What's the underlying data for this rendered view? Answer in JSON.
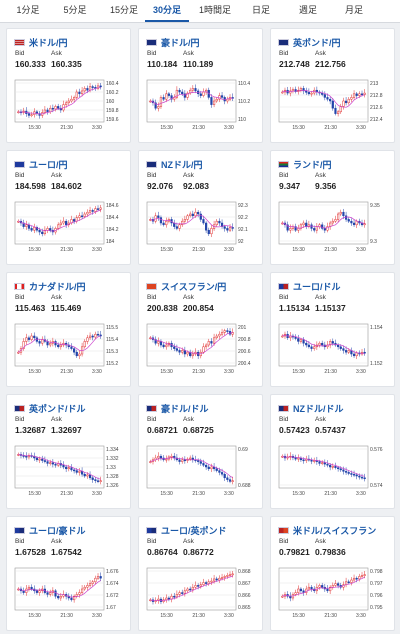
{
  "tabs": [
    {
      "label": "1分足",
      "active": false
    },
    {
      "label": "5分足",
      "active": false
    },
    {
      "label": "15分足",
      "active": false
    },
    {
      "label": "30分足",
      "active": true
    },
    {
      "label": "1時間足",
      "active": false
    },
    {
      "label": "日足",
      "active": false
    },
    {
      "label": "週足",
      "active": false
    },
    {
      "label": "月足",
      "active": false
    }
  ],
  "bid_label": "Bid",
  "ask_label": "Ask",
  "x_ticks": [
    "15:30",
    "21:30",
    "3:30"
  ],
  "colors": {
    "up": "#e03030",
    "down": "#2244aa",
    "ma": "#cc44cc",
    "accent": "#1a58a7"
  },
  "cards": [
    {
      "title": "米ドル/円",
      "flag": "flag-us-icon",
      "bid": "160.333",
      "ask": "160.335",
      "y_ticks": [
        "160.4",
        "160.2",
        "160",
        "159.8",
        "159.6"
      ],
      "series": [
        0.2,
        0.18,
        0.22,
        0.15,
        0.1,
        0.12,
        0.2,
        0.15,
        0.1,
        0.18,
        0.25,
        0.2,
        0.3,
        0.28,
        0.35,
        0.3,
        0.25,
        0.4,
        0.45,
        0.5,
        0.55,
        0.6,
        0.75,
        0.7,
        0.78,
        0.85,
        0.8,
        0.9,
        0.88,
        0.85,
        0.92,
        0.9
      ]
    },
    {
      "title": "豪ドル/円",
      "flag": "flag-au-icon",
      "bid": "110.184",
      "ask": "110.189",
      "y_ticks": [
        "110.4",
        "110.2",
        "110"
      ],
      "series": [
        0.5,
        0.45,
        0.3,
        0.35,
        0.6,
        0.55,
        0.7,
        0.65,
        0.55,
        0.6,
        0.8,
        0.75,
        0.7,
        0.6,
        0.72,
        0.8,
        0.85,
        0.78,
        0.7,
        0.65,
        0.75,
        0.8,
        0.6,
        0.4,
        0.5,
        0.55,
        0.65,
        0.6,
        0.5,
        0.55,
        0.6,
        0.58
      ]
    },
    {
      "title": "英ポンド/円",
      "flag": "flag-gb-icon",
      "bid": "212.748",
      "ask": "212.756",
      "y_ticks": [
        "213",
        "212.8",
        "212.6",
        "212.4"
      ],
      "series": [
        0.75,
        0.8,
        0.72,
        0.78,
        0.82,
        0.76,
        0.8,
        0.85,
        0.78,
        0.74,
        0.7,
        0.72,
        0.8,
        0.75,
        0.72,
        0.68,
        0.6,
        0.55,
        0.5,
        0.3,
        0.15,
        0.2,
        0.35,
        0.5,
        0.45,
        0.55,
        0.6,
        0.7,
        0.65,
        0.7,
        0.68,
        0.72
      ]
    },
    {
      "title": "ユーロ/円",
      "flag": "flag-eu-icon",
      "bid": "184.598",
      "ask": "184.602",
      "y_ticks": [
        "184.6",
        "184.4",
        "184.2",
        "184"
      ],
      "series": [
        0.55,
        0.5,
        0.4,
        0.45,
        0.35,
        0.3,
        0.38,
        0.3,
        0.25,
        0.2,
        0.3,
        0.35,
        0.3,
        0.25,
        0.35,
        0.45,
        0.5,
        0.55,
        0.45,
        0.5,
        0.6,
        0.55,
        0.65,
        0.7,
        0.68,
        0.75,
        0.8,
        0.85,
        0.82,
        0.9,
        0.88,
        0.92
      ]
    },
    {
      "title": "NZドル/円",
      "flag": "flag-nz-icon",
      "bid": "92.076",
      "ask": "92.083",
      "y_ticks": [
        "92.3",
        "92.2",
        "92.1",
        "92"
      ],
      "series": [
        0.6,
        0.55,
        0.7,
        0.65,
        0.5,
        0.45,
        0.55,
        0.6,
        0.5,
        0.4,
        0.35,
        0.45,
        0.55,
        0.6,
        0.7,
        0.75,
        0.7,
        0.8,
        0.75,
        0.6,
        0.5,
        0.3,
        0.2,
        0.35,
        0.45,
        0.55,
        0.5,
        0.4,
        0.35,
        0.3,
        0.38,
        0.35
      ]
    },
    {
      "title": "ランド/円",
      "flag": "flag-za-icon",
      "bid": "9.347",
      "ask": "9.356",
      "y_ticks": [
        "9.35",
        "9.3"
      ],
      "series": [
        0.5,
        0.45,
        0.3,
        0.35,
        0.4,
        0.3,
        0.35,
        0.45,
        0.5,
        0.4,
        0.45,
        0.35,
        0.3,
        0.4,
        0.45,
        0.35,
        0.3,
        0.4,
        0.5,
        0.55,
        0.6,
        0.75,
        0.8,
        0.7,
        0.6,
        0.55,
        0.5,
        0.45,
        0.55,
        0.5,
        0.45,
        0.48
      ]
    },
    {
      "title": "カナダドル/円",
      "flag": "flag-ca-icon",
      "bid": "115.463",
      "ask": "115.469",
      "y_ticks": [
        "115.5",
        "115.4",
        "115.3",
        "115.2"
      ],
      "series": [
        0.3,
        0.4,
        0.6,
        0.7,
        0.65,
        0.75,
        0.7,
        0.6,
        0.55,
        0.65,
        0.6,
        0.5,
        0.55,
        0.6,
        0.5,
        0.45,
        0.5,
        0.55,
        0.5,
        0.45,
        0.4,
        0.3,
        0.2,
        0.25,
        0.45,
        0.6,
        0.7,
        0.75,
        0.72,
        0.8,
        0.78,
        0.75
      ]
    },
    {
      "title": "スイスフラン/円",
      "flag": "flag-ch-icon",
      "bid": "200.838",
      "ask": "200.854",
      "y_ticks": [
        "201",
        "200.8",
        "200.6",
        "200.4"
      ],
      "series": [
        0.7,
        0.65,
        0.55,
        0.6,
        0.5,
        0.45,
        0.5,
        0.55,
        0.45,
        0.4,
        0.35,
        0.3,
        0.35,
        0.25,
        0.3,
        0.2,
        0.25,
        0.3,
        0.2,
        0.3,
        0.45,
        0.5,
        0.6,
        0.55,
        0.7,
        0.75,
        0.8,
        0.85,
        0.9,
        0.88,
        0.8,
        0.85
      ]
    },
    {
      "title": "ユーロ/ドル",
      "flag": "flag-eu-us-icon",
      "bid": "1.15134",
      "ask": "1.15137",
      "y_ticks": [
        "1.154",
        "1.152"
      ],
      "series": [
        0.75,
        0.8,
        0.7,
        0.75,
        0.72,
        0.68,
        0.6,
        0.65,
        0.55,
        0.5,
        0.45,
        0.4,
        0.45,
        0.5,
        0.55,
        0.5,
        0.45,
        0.5,
        0.6,
        0.55,
        0.5,
        0.45,
        0.4,
        0.35,
        0.3,
        0.35,
        0.25,
        0.2,
        0.28,
        0.25,
        0.3,
        0.28
      ]
    },
    {
      "title": "英ポンド/ドル",
      "flag": "flag-gb-us-icon",
      "bid": "1.32687",
      "ask": "1.32697",
      "y_ticks": [
        "1.334",
        "1.332",
        "1.33",
        "1.328",
        "1.326"
      ],
      "series": [
        0.85,
        0.82,
        0.8,
        0.78,
        0.82,
        0.8,
        0.75,
        0.7,
        0.72,
        0.68,
        0.65,
        0.6,
        0.62,
        0.58,
        0.55,
        0.6,
        0.55,
        0.5,
        0.45,
        0.48,
        0.42,
        0.4,
        0.35,
        0.38,
        0.3,
        0.25,
        0.28,
        0.2,
        0.15,
        0.12,
        0.1,
        0.12
      ]
    },
    {
      "title": "豪ドル/ドル",
      "flag": "flag-au-us-icon",
      "bid": "0.68721",
      "ask": "0.68725",
      "y_ticks": [
        "0.69",
        "0.688"
      ],
      "series": [
        0.65,
        0.7,
        0.75,
        0.8,
        0.75,
        0.7,
        0.72,
        0.78,
        0.8,
        0.75,
        0.7,
        0.65,
        0.7,
        0.68,
        0.72,
        0.75,
        0.7,
        0.68,
        0.65,
        0.6,
        0.55,
        0.5,
        0.45,
        0.5,
        0.45,
        0.4,
        0.35,
        0.3,
        0.2,
        0.15,
        0.1,
        0.12
      ]
    },
    {
      "title": "NZドル/ドル",
      "flag": "flag-nz-us-icon",
      "bid": "0.57423",
      "ask": "0.57437",
      "y_ticks": [
        "0.576",
        "0.574"
      ],
      "series": [
        0.8,
        0.75,
        0.78,
        0.8,
        0.76,
        0.72,
        0.75,
        0.7,
        0.68,
        0.72,
        0.7,
        0.66,
        0.68,
        0.65,
        0.6,
        0.62,
        0.58,
        0.55,
        0.5,
        0.52,
        0.48,
        0.45,
        0.42,
        0.38,
        0.35,
        0.32,
        0.3,
        0.28,
        0.25,
        0.22,
        0.2,
        0.18
      ]
    },
    {
      "title": "ユーロ/豪ドル",
      "flag": "flag-eu-au-icon",
      "bid": "1.67528",
      "ask": "1.67542",
      "y_ticks": [
        "1.676",
        "1.674",
        "1.672",
        "1.67"
      ],
      "series": [
        0.5,
        0.45,
        0.4,
        0.5,
        0.55,
        0.5,
        0.45,
        0.4,
        0.45,
        0.5,
        0.4,
        0.35,
        0.4,
        0.45,
        0.3,
        0.25,
        0.3,
        0.35,
        0.3,
        0.25,
        0.2,
        0.3,
        0.35,
        0.4,
        0.5,
        0.55,
        0.6,
        0.65,
        0.7,
        0.8,
        0.85,
        0.8
      ]
    },
    {
      "title": "ユーロ/英ポンド",
      "flag": "flag-eu-gb-icon",
      "bid": "0.86764",
      "ask": "0.86772",
      "y_ticks": [
        "0.868",
        "0.867",
        "0.866",
        "0.865"
      ],
      "series": [
        0.2,
        0.15,
        0.18,
        0.22,
        0.15,
        0.2,
        0.25,
        0.22,
        0.3,
        0.28,
        0.35,
        0.4,
        0.38,
        0.45,
        0.5,
        0.48,
        0.55,
        0.6,
        0.58,
        0.62,
        0.68,
        0.65,
        0.7,
        0.72,
        0.78,
        0.75,
        0.8,
        0.82,
        0.85,
        0.88,
        0.9,
        0.92
      ]
    },
    {
      "title": "米ドル/スイスフラン",
      "flag": "flag-us-ch-icon",
      "bid": "0.79821",
      "ask": "0.79836",
      "y_ticks": [
        "0.798",
        "0.797",
        "0.796",
        "0.795"
      ],
      "series": [
        0.3,
        0.35,
        0.3,
        0.25,
        0.35,
        0.4,
        0.5,
        0.45,
        0.4,
        0.5,
        0.55,
        0.5,
        0.45,
        0.55,
        0.6,
        0.55,
        0.5,
        0.45,
        0.55,
        0.6,
        0.65,
        0.6,
        0.55,
        0.62,
        0.7,
        0.68,
        0.75,
        0.8,
        0.78,
        0.85,
        0.88,
        0.9
      ]
    }
  ]
}
